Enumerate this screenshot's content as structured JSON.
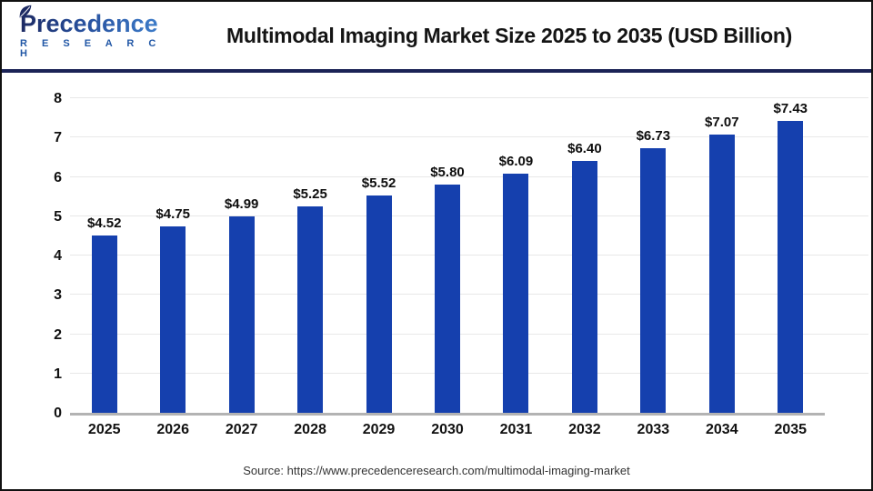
{
  "header": {
    "logo": {
      "brand": "Precedence",
      "sub": "R E S E A R C H"
    },
    "title": "Multimodal Imaging Market Size 2025 to 2035 (USD Billion)"
  },
  "chart_data": {
    "type": "bar",
    "title": "Multimodal Imaging Market Size 2025 to 2035 (USD Billion)",
    "categories": [
      "2025",
      "2026",
      "2027",
      "2028",
      "2029",
      "2030",
      "2031",
      "2032",
      "2033",
      "2034",
      "2035"
    ],
    "values": [
      4.52,
      4.75,
      4.99,
      5.25,
      5.52,
      5.8,
      6.09,
      6.4,
      6.73,
      7.07,
      7.43
    ],
    "value_labels": [
      "$4.52",
      "$4.75",
      "$4.99",
      "$5.25",
      "$5.52",
      "$5.80",
      "$6.09",
      "$6.40",
      "$6.73",
      "$7.07",
      "$7.43"
    ],
    "xlabel": "",
    "ylabel": "",
    "ylim": [
      0,
      8
    ],
    "yticks": [
      0,
      1,
      2,
      3,
      4,
      5,
      6,
      7,
      8
    ],
    "grid": true,
    "legend": false,
    "bar_color": "#1540ae",
    "gridline_color": "#e8e8e8",
    "baseline_color": "#b3b3b3"
  },
  "footer": {
    "source": "Source: https://www.precedenceresearch.com/multimodal-imaging-market"
  },
  "colors": {
    "header_rule": "#1b2356",
    "brand_navy": "#1d2a63",
    "brand_blue": "#2157a6"
  }
}
